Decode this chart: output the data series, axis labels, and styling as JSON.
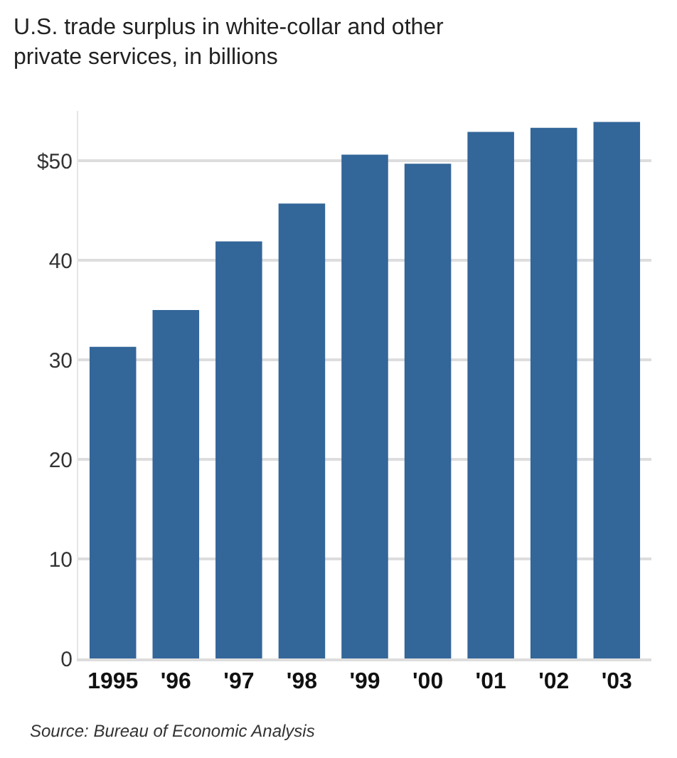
{
  "chart_data": {
    "type": "bar",
    "title": "U.S. trade surplus in white-collar and other private services, in billions",
    "categories": [
      "1995",
      "'96",
      "'97",
      "'98",
      "'99",
      "'00",
      "'01",
      "'02",
      "'03"
    ],
    "values": [
      31.3,
      35.0,
      41.9,
      45.7,
      50.6,
      49.7,
      52.9,
      53.3,
      53.9
    ],
    "color": "#336699",
    "ylim": [
      0,
      55
    ],
    "yticks": [
      0,
      10,
      20,
      30,
      40,
      {
        "value": 50,
        "label": "$50"
      }
    ],
    "grid": "y",
    "annotations": [
      "Source: Bureau of Economic Analysis"
    ]
  }
}
